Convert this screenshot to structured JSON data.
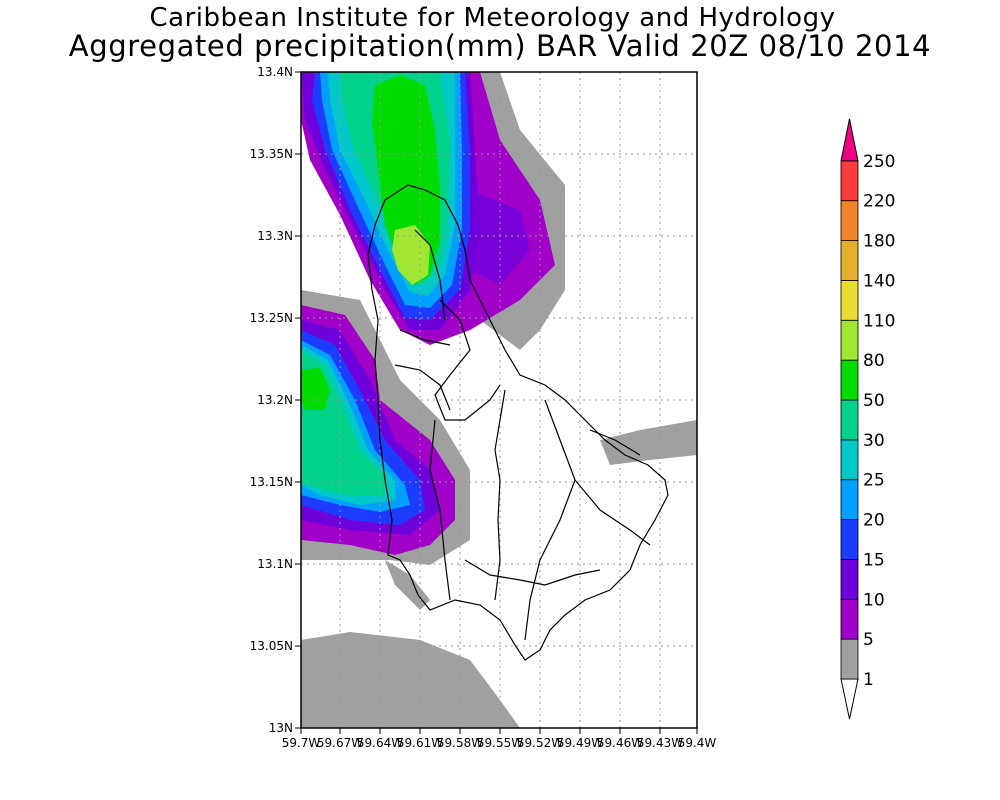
{
  "title_line1": "Caribbean Institute for Meteorology and Hydrology",
  "title_line2": "Aggregated precipitation(mm) BAR Valid 20Z 08/10 2014",
  "map": {
    "lon_labels": [
      "59.7W",
      "59.67W",
      "59.64W",
      "59.61W",
      "59.58W",
      "59.55W",
      "59.52W",
      "59.49W",
      "59.46W",
      "59.43W",
      "59.4W"
    ],
    "lat_labels": [
      "13.4N",
      "13.35N",
      "13.3N",
      "13.25N",
      "13.2N",
      "13.15N",
      "13.1N",
      "13.05N",
      "13N"
    ],
    "lon_range": [
      -59.7,
      -59.4
    ],
    "lat_range": [
      13.0,
      13.4
    ],
    "grid": true
  },
  "colorbar": {
    "levels": [
      "1",
      "5",
      "10",
      "15",
      "20",
      "25",
      "30",
      "50",
      "80",
      "110",
      "140",
      "180",
      "220",
      "250"
    ],
    "colors": [
      "#a0a0a0",
      "#a000c8",
      "#6e00dc",
      "#1e3cff",
      "#00a0ff",
      "#00c8c8",
      "#00d28c",
      "#00dc00",
      "#a0e632",
      "#e6dc32",
      "#e6af2d",
      "#f08228",
      "#fa3c3c",
      "#f00082"
    ],
    "below_color": "#ffffff"
  }
}
